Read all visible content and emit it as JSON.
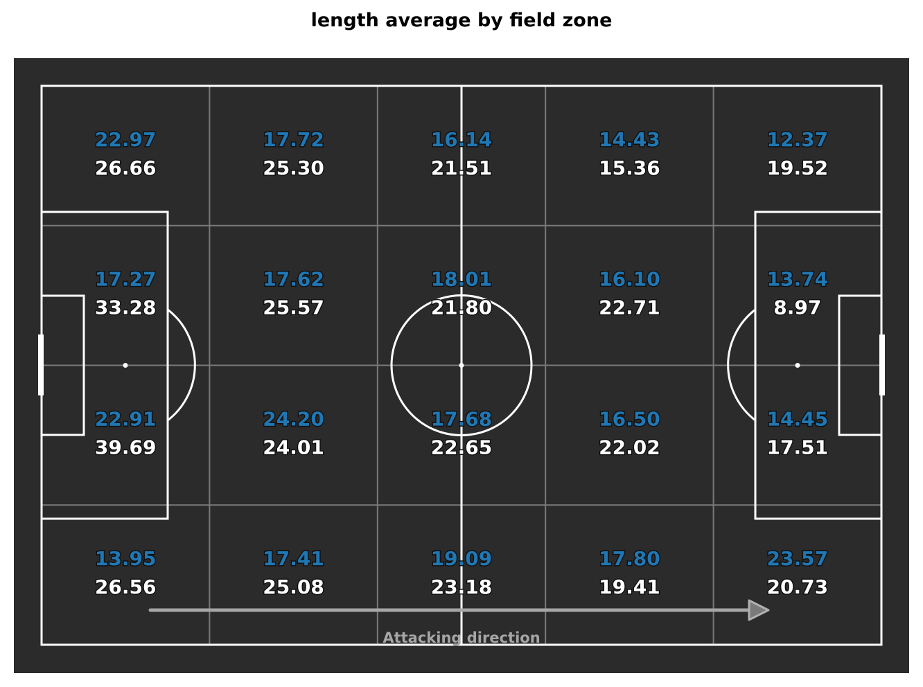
{
  "chart_data": {
    "type": "heatmap",
    "title": "length average by field zone",
    "grid": {
      "rows": 4,
      "cols": 5
    },
    "background_color": "#2b2b2b",
    "line_color": "#ffffff",
    "series": [
      {
        "color": "#1f77b4",
        "values": [
          [
            22.97,
            17.72,
            16.14,
            14.43,
            12.37
          ],
          [
            17.27,
            17.62,
            18.01,
            16.1,
            13.74
          ],
          [
            22.91,
            24.2,
            17.68,
            16.5,
            14.45
          ],
          [
            13.95,
            17.41,
            19.09,
            17.8,
            23.57
          ]
        ]
      },
      {
        "color": "#ffffff",
        "values": [
          [
            26.66,
            25.3,
            21.51,
            15.36,
            19.52
          ],
          [
            33.28,
            25.57,
            21.8,
            22.71,
            8.97
          ],
          [
            39.69,
            24.01,
            22.65,
            22.02,
            17.51
          ],
          [
            26.56,
            25.08,
            23.18,
            19.41,
            20.73
          ]
        ]
      }
    ],
    "annotation": "Attacking direction"
  }
}
